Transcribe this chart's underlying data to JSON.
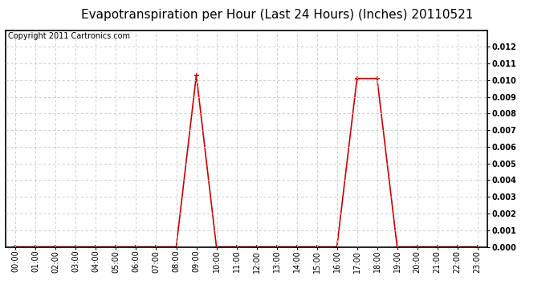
{
  "title": "Evapotranspiration per Hour (Last 24 Hours) (Inches) 20110521",
  "copyright_text": "Copyright 2011 Cartronics.com",
  "hours": [
    0,
    1,
    2,
    3,
    4,
    5,
    6,
    7,
    8,
    9,
    10,
    11,
    12,
    13,
    14,
    15,
    16,
    17,
    18,
    19,
    20,
    21,
    22,
    23
  ],
  "values": [
    0.0,
    0.0,
    0.0,
    0.0,
    0.0,
    0.0,
    0.0,
    0.0,
    0.0,
    0.0103,
    0.0,
    0.0,
    0.0,
    0.0,
    0.0,
    0.0,
    0.0,
    0.0101,
    0.0101,
    0.0,
    0.0,
    0.0,
    0.0,
    0.0
  ],
  "line_color": "#cc0000",
  "marker": "+",
  "marker_size": 4,
  "marker_color": "#cc0000",
  "ylim": [
    0,
    0.013
  ],
  "yticks": [
    0.0,
    0.001,
    0.002,
    0.003,
    0.004,
    0.005,
    0.006,
    0.007,
    0.008,
    0.009,
    0.01,
    0.011,
    0.012
  ],
  "bg_color": "#ffffff",
  "grid_color": "#c8c8c8",
  "title_fontsize": 11,
  "copyright_fontsize": 7,
  "tick_label_fontsize": 7
}
